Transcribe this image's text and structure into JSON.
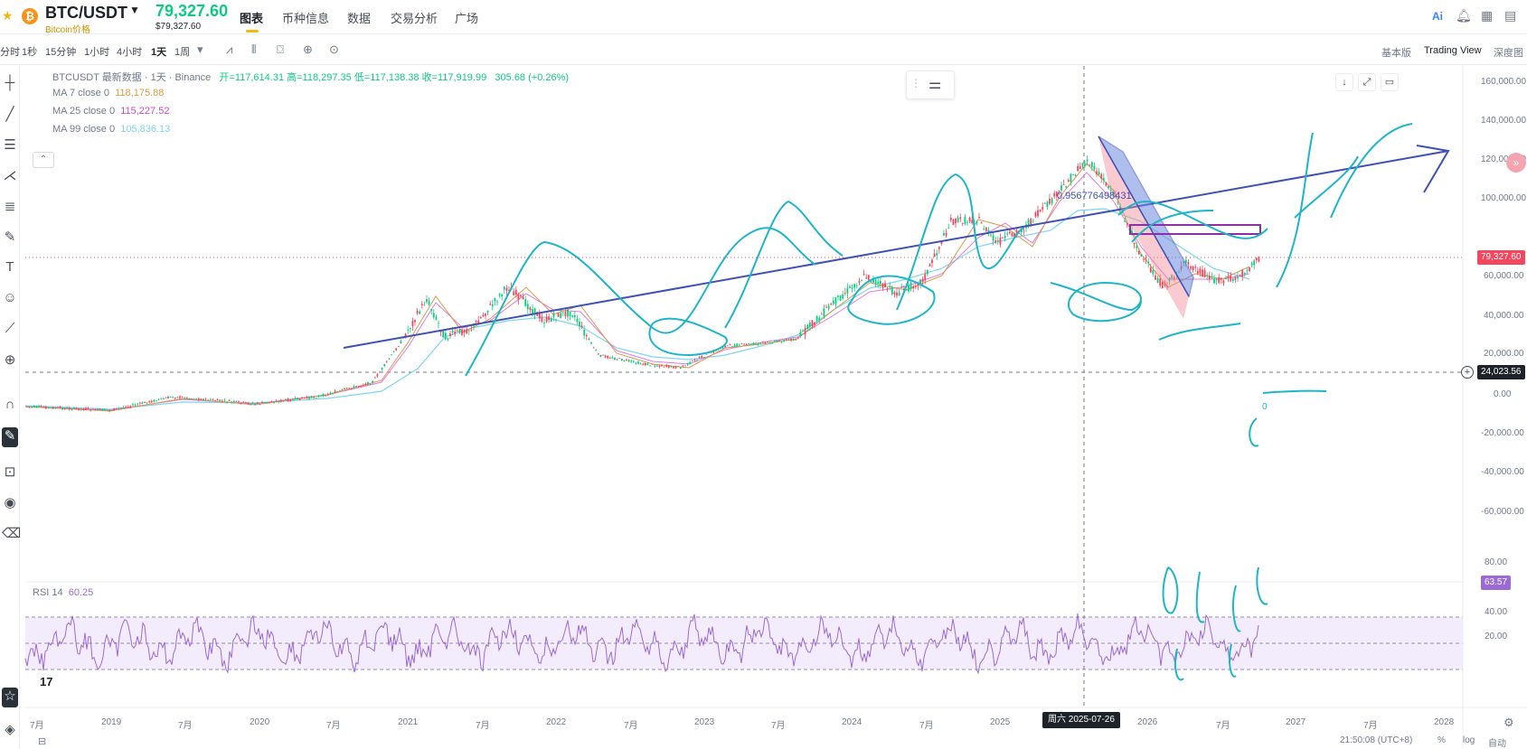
{
  "header": {
    "pair": "BTC/USDT",
    "subname": "Bitcoin价格",
    "last_price": "79,327.60",
    "last_price_usd": "$79,327.60",
    "tabs": [
      {
        "label": "图表",
        "active": true
      },
      {
        "label": "币种信息",
        "active": false
      },
      {
        "label": "数据",
        "active": false
      },
      {
        "label": "交易分析",
        "active": false
      },
      {
        "label": "广场",
        "active": false
      }
    ],
    "icons": [
      "ai-icon",
      "bell-icon",
      "grid-icon",
      "layout-icon"
    ]
  },
  "toolbar": {
    "intervals": [
      {
        "label": "分时",
        "active": false
      },
      {
        "label": "1秒",
        "active": false
      },
      {
        "label": "15分钟",
        "active": false
      },
      {
        "label": "1小时",
        "active": false
      },
      {
        "label": "4小时",
        "active": false
      },
      {
        "label": "1天",
        "active": true
      },
      {
        "label": "1周",
        "active": false
      }
    ],
    "views": [
      {
        "label": "基本版",
        "active": false
      },
      {
        "label": "Trading View",
        "active": true
      },
      {
        "label": "深度图",
        "active": false
      }
    ]
  },
  "legend": {
    "symbol": "BTCUSDT 最新数据 · 1天 · Binance",
    "ohlc": "开=117,614.31  高=118,297.35  低=117,138.38  收=117,919.99",
    "change": "305.68 (+0.26%)",
    "ma": [
      {
        "label": "MA 7 close 0",
        "value": "118,175.88",
        "color": "#d99a4a"
      },
      {
        "label": "MA 25 close 0",
        "value": "115,227.52",
        "color": "#c44fc4"
      },
      {
        "label": "MA 99 close 0",
        "value": "105,836.13",
        "color": "#7fd4f0"
      }
    ]
  },
  "annotation_text": "0.956776498431",
  "yaxis": {
    "labels": [
      "160,000.00",
      "140,000.00",
      "120,000.00",
      "100,000.00",
      "60,000.00",
      "40,000.00",
      "20,000.00",
      "0.00",
      "-20,000.00",
      "-40,000.00",
      "-60,000.00"
    ],
    "last_price_tag": "79,327.60",
    "crosshair_tag": "24,023.56"
  },
  "rsi": {
    "label": "RSI 14",
    "value": "60.25",
    "labels": [
      "80.00",
      "40.00",
      "20.00"
    ],
    "tag": "63.57"
  },
  "xaxis": {
    "labels": [
      "7月",
      "2019",
      "7月",
      "2020",
      "7月",
      "2021",
      "7月",
      "2022",
      "7月",
      "2023",
      "7月",
      "2024",
      "7月",
      "2025",
      "2026",
      "7月",
      "2027",
      "7月",
      "2028"
    ],
    "crosshair_date": "周六 2025-07-26"
  },
  "footer": {
    "time": "21:50:08 (UTC+8)",
    "options": [
      "%",
      "log",
      "自动"
    ]
  },
  "colors": {
    "up": "#0ecb81",
    "down": "#f6465d",
    "trendline": "#3f51b5",
    "drawing": "#1fb5c9",
    "rsi_line": "#9c6ad6",
    "accent": "#f0b90b"
  }
}
